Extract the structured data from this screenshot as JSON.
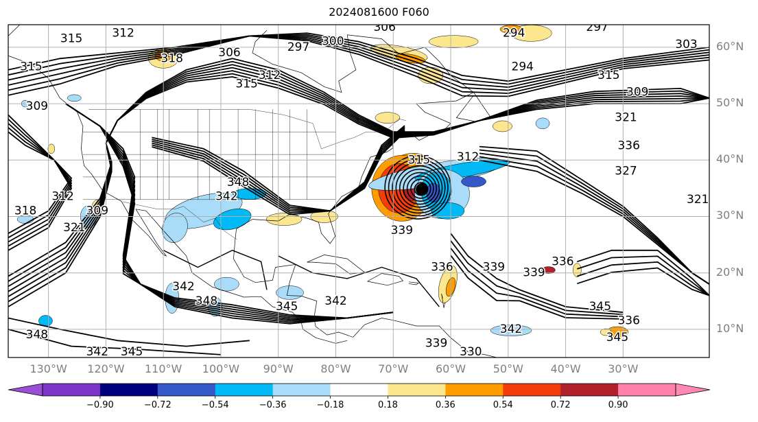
{
  "title": "2024081600 F060",
  "map": {
    "projection": "plate-carree",
    "lon_range": [
      -137,
      -15
    ],
    "lat_range": [
      5,
      64
    ],
    "contour_color": "#000000",
    "coastline_color": "#000000",
    "grid_color": "#b0b0b0",
    "lat_ticks": [
      {
        "value": 10,
        "label": "10°N"
      },
      {
        "value": 20,
        "label": "20°N"
      },
      {
        "value": 30,
        "label": "30°N"
      },
      {
        "value": 40,
        "label": "40°N"
      },
      {
        "value": 50,
        "label": "50°N"
      },
      {
        "value": 60,
        "label": "60°N"
      }
    ],
    "lon_ticks": [
      {
        "value": -130,
        "label": "130°W"
      },
      {
        "value": -120,
        "label": "120°W"
      },
      {
        "value": -110,
        "label": "110°W"
      },
      {
        "value": -100,
        "label": "100°W"
      },
      {
        "value": -90,
        "label": "90°W"
      },
      {
        "value": -80,
        "label": "80°W"
      },
      {
        "value": -70,
        "label": "70°W"
      },
      {
        "value": -60,
        "label": "60°W"
      },
      {
        "value": -50,
        "label": "50°W"
      },
      {
        "value": -40,
        "label": "40°W"
      },
      {
        "value": -30,
        "label": "30°W"
      }
    ],
    "contour_labels": [
      {
        "text": "315",
        "lon": -126,
        "lat": 61.5
      },
      {
        "text": "312",
        "lon": -117,
        "lat": 62.5
      },
      {
        "text": "318",
        "lon": -108.5,
        "lat": 58
      },
      {
        "text": "306",
        "lon": -98.5,
        "lat": 59
      },
      {
        "text": "297",
        "lon": -86.5,
        "lat": 60
      },
      {
        "text": "300",
        "lon": -80.5,
        "lat": 61
      },
      {
        "text": "306",
        "lon": -71.5,
        "lat": 63.5
      },
      {
        "text": "294",
        "lon": -49,
        "lat": 62.5
      },
      {
        "text": "297",
        "lon": -34.5,
        "lat": 63.5
      },
      {
        "text": "303",
        "lon": -19,
        "lat": 60.5
      },
      {
        "text": "294",
        "lon": -47.5,
        "lat": 56.5
      },
      {
        "text": "315",
        "lon": -32.5,
        "lat": 55
      },
      {
        "text": "309",
        "lon": -27.5,
        "lat": 52
      },
      {
        "text": "321",
        "lon": -29.5,
        "lat": 47.5
      },
      {
        "text": "336",
        "lon": -29,
        "lat": 42.5
      },
      {
        "text": "327",
        "lon": -29.5,
        "lat": 38
      },
      {
        "text": "321",
        "lon": -17,
        "lat": 33
      },
      {
        "text": "312",
        "lon": -91.5,
        "lat": 55
      },
      {
        "text": "315",
        "lon": -95.5,
        "lat": 53.5
      },
      {
        "text": "315",
        "lon": -133,
        "lat": 56.5
      },
      {
        "text": "309",
        "lon": -132,
        "lat": 49.5
      },
      {
        "text": "312",
        "lon": -127.5,
        "lat": 33.5
      },
      {
        "text": "318",
        "lon": -134,
        "lat": 31
      },
      {
        "text": "309",
        "lon": -121.5,
        "lat": 31
      },
      {
        "text": "321",
        "lon": -125.5,
        "lat": 28
      },
      {
        "text": "348",
        "lon": -97,
        "lat": 36
      },
      {
        "text": "342",
        "lon": -99,
        "lat": 33.5
      },
      {
        "text": "315",
        "lon": -65.5,
        "lat": 40
      },
      {
        "text": "312",
        "lon": -57,
        "lat": 40.5
      },
      {
        "text": "339",
        "lon": -68.5,
        "lat": 27.5
      },
      {
        "text": "336",
        "lon": -61.5,
        "lat": 21
      },
      {
        "text": "339",
        "lon": -52.5,
        "lat": 21
      },
      {
        "text": "339",
        "lon": -45.5,
        "lat": 20
      },
      {
        "text": "336",
        "lon": -40.5,
        "lat": 22
      },
      {
        "text": "342",
        "lon": -106.5,
        "lat": 17.5
      },
      {
        "text": "348",
        "lon": -102.5,
        "lat": 15
      },
      {
        "text": "345",
        "lon": -88.5,
        "lat": 14
      },
      {
        "text": "342",
        "lon": -80,
        "lat": 15
      },
      {
        "text": "345",
        "lon": -34,
        "lat": 14
      },
      {
        "text": "336",
        "lon": -29,
        "lat": 11.5
      },
      {
        "text": "345",
        "lon": -31,
        "lat": 8.5
      },
      {
        "text": "342",
        "lon": -49.5,
        "lat": 10
      },
      {
        "text": "348",
        "lon": -132,
        "lat": 9
      },
      {
        "text": "342",
        "lon": -121.5,
        "lat": 6
      },
      {
        "text": "345",
        "lon": -115.5,
        "lat": 6
      },
      {
        "text": "339",
        "lon": -62.5,
        "lat": 7.5
      },
      {
        "text": "330",
        "lon": -56.5,
        "lat": 6
      }
    ],
    "cyclone_center": {
      "lon": -65,
      "lat": 34.8
    }
  },
  "colorbar": {
    "boundaries": [
      -1.08,
      -0.9,
      -0.72,
      -0.54,
      -0.36,
      -0.18,
      0.18,
      0.36,
      0.54,
      0.72,
      0.9,
      1.08
    ],
    "tick_labels": [
      "−0.90",
      "−0.72",
      "−0.54",
      "−0.36",
      "−0.18",
      "0.18",
      "0.36",
      "0.54",
      "0.72",
      "0.90"
    ],
    "colors": [
      "#7b35c7",
      "#00007f",
      "#3458c8",
      "#00b9f5",
      "#a9dcf8",
      "#ffffff",
      "#fce78f",
      "#ff9d00",
      "#f53c0b",
      "#b1212c",
      "#ff80aa"
    ],
    "under_color": "#9b4fd6",
    "over_color": "#ff88b4",
    "extend": "both"
  }
}
